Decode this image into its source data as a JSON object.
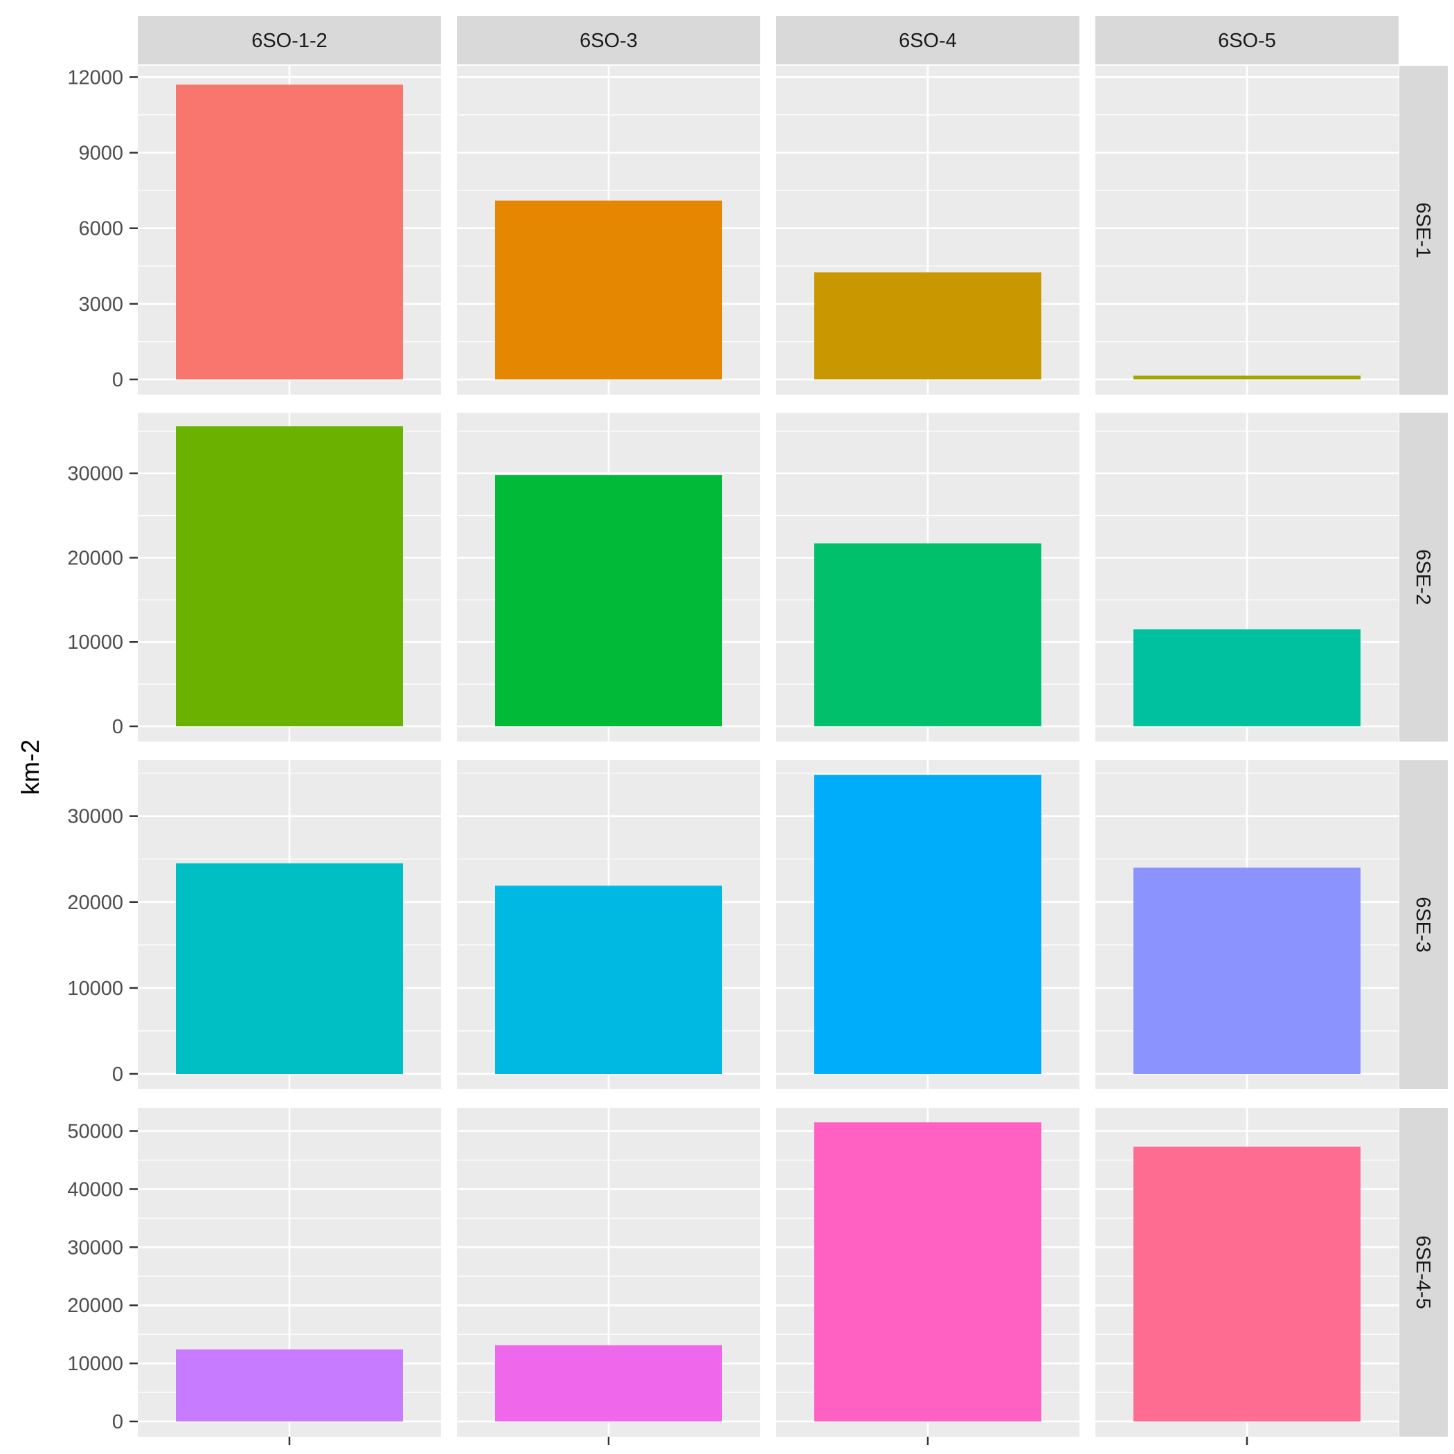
{
  "chart_data": {
    "type": "bar",
    "facet_layout": "grid",
    "ylabel": "km-2",
    "xlabel": "",
    "column_facets": [
      "6SO-1-2",
      "6SO-3",
      "6SO-4",
      "6SO-5"
    ],
    "row_facets": [
      {
        "label": "6SE-1",
        "ylim": [
          0,
          12450
        ],
        "yticks": [
          0,
          3000,
          6000,
          9000,
          12000
        ],
        "values": [
          11700,
          7100,
          4250,
          150
        ],
        "colors": [
          "#F8766D",
          "#E58700",
          "#C99800",
          "#A3A500"
        ]
      },
      {
        "label": "6SE-2",
        "ylim": [
          0,
          37200
        ],
        "yticks": [
          0,
          10000,
          20000,
          30000
        ],
        "values": [
          35600,
          29800,
          21700,
          11500
        ],
        "colors": [
          "#6BB100",
          "#00BA38",
          "#00C06B",
          "#00C19F"
        ]
      },
      {
        "label": "6SE-3",
        "ylim": [
          0,
          36500
        ],
        "yticks": [
          0,
          10000,
          20000,
          30000
        ],
        "values": [
          24500,
          21900,
          34800,
          24000
        ],
        "colors": [
          "#00BFC4",
          "#00B9E3",
          "#00ADFA",
          "#8B93FF"
        ]
      },
      {
        "label": "6SE-4-5",
        "ylim": [
          0,
          54000
        ],
        "yticks": [
          0,
          10000,
          20000,
          30000,
          40000,
          50000
        ],
        "values": [
          12400,
          13100,
          51500,
          47300
        ],
        "colors": [
          "#C77CFF",
          "#EF67EB",
          "#FF61C3",
          "#FF6C91"
        ]
      }
    ],
    "grid": true,
    "legend": "none"
  }
}
